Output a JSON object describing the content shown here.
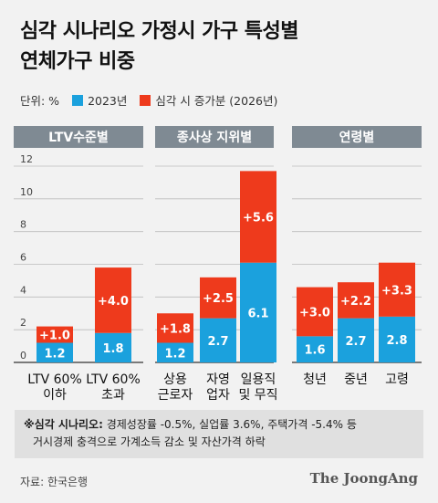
{
  "title_line1": "심각 시나리오 가정시 가구 특성별",
  "title_line2": "연체가구 비중",
  "unit": "단위: %",
  "legend": [
    {
      "label": "2023년",
      "color": "#1ba1dd"
    },
    {
      "label": "심각 시 증가분 (2026년)",
      "color": "#ee3a1c"
    }
  ],
  "colors": {
    "base": "#1ba1dd",
    "increase": "#ee3a1c",
    "header": "#7f8a93"
  },
  "chart_data": {
    "type": "bar",
    "stacked": true,
    "ylim": [
      0,
      12
    ],
    "yticks": [
      "12",
      "10",
      "8",
      "6",
      "4",
      "2",
      "0"
    ],
    "groups": [
      {
        "header": "LTV수준별",
        "categories": [
          {
            "label": [
              "LTV 60%",
              "이하"
            ],
            "base": 1.2,
            "increase": 1.0,
            "base_label": "1.2",
            "increase_label": "+1.0"
          },
          {
            "label": [
              "LTV 60%",
              "초과"
            ],
            "base": 1.8,
            "increase": 4.0,
            "base_label": "1.8",
            "increase_label": "+4.0"
          }
        ]
      },
      {
        "header": "종사상 지위별",
        "categories": [
          {
            "label": [
              "상용",
              "근로자"
            ],
            "base": 1.2,
            "increase": 1.8,
            "base_label": "1.2",
            "increase_label": "+1.8"
          },
          {
            "label": [
              "자영",
              "업자"
            ],
            "base": 2.7,
            "increase": 2.5,
            "base_label": "2.7",
            "increase_label": "+2.5"
          },
          {
            "label": [
              "일용직",
              "및 무직"
            ],
            "base": 6.1,
            "increase": 5.6,
            "base_label": "6.1",
            "increase_label": "+5.6"
          }
        ]
      },
      {
        "header": "연령별",
        "categories": [
          {
            "label": [
              "청년"
            ],
            "base": 1.6,
            "increase": 3.0,
            "base_label": "1.6",
            "increase_label": "+3.0"
          },
          {
            "label": [
              "중년"
            ],
            "base": 2.7,
            "increase": 2.2,
            "base_label": "2.7",
            "increase_label": "+2.2"
          },
          {
            "label": [
              "고령"
            ],
            "base": 2.8,
            "increase": 3.3,
            "base_label": "2.8",
            "increase_label": "+3.3"
          }
        ]
      }
    ]
  },
  "note": {
    "prefix": "※심각 시나리오:",
    "line1": " 경제성장률 -0.5%, 실업률 3.6%, 주택가격 -5.4% 등",
    "line2": "거시경제 충격으로 가계소득 감소 및 자산가격 하락"
  },
  "source": "자료: 한국은행",
  "brand": "The JoongAng"
}
